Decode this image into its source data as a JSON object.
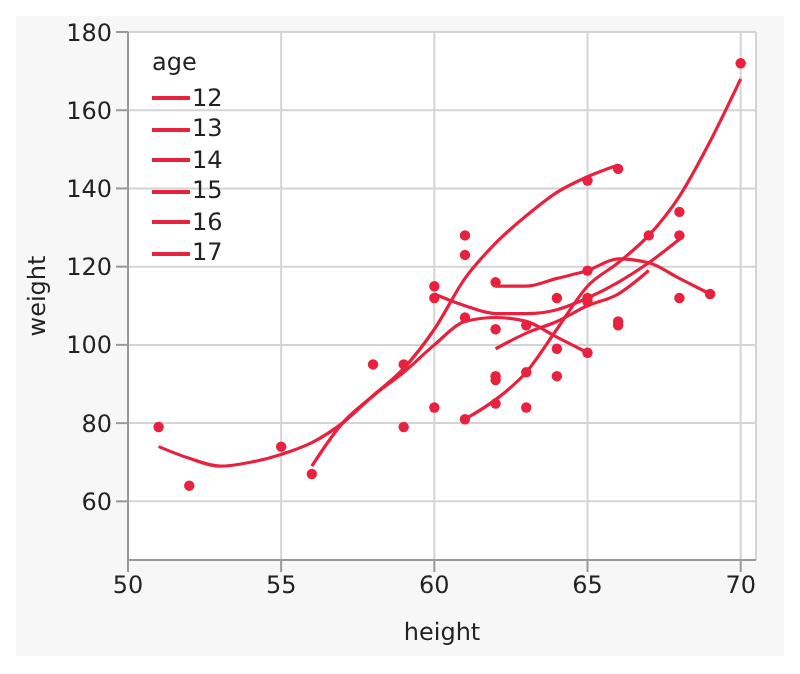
{
  "chart_data": {
    "type": "scatter",
    "xlabel": "height",
    "ylabel": "weight",
    "legend_title": "age",
    "xlim": [
      50,
      70.5
    ],
    "ylim": [
      45,
      180
    ],
    "xticks": [
      50,
      55,
      60,
      65,
      70
    ],
    "yticks": [
      60,
      80,
      100,
      120,
      140,
      160,
      180
    ],
    "grid": true,
    "legend": "top left",
    "series": [
      {
        "color": "#e8213f",
        "marker": "circle",
        "x": [
          51,
          52,
          55,
          56,
          58,
          59,
          59,
          60,
          60,
          60,
          61,
          61,
          61,
          61,
          62,
          62,
          62,
          62,
          62,
          63,
          63,
          63,
          64,
          64,
          64,
          65,
          65,
          65,
          65,
          65,
          66,
          66,
          66,
          67,
          68,
          68,
          68,
          69,
          70
        ],
        "values": [
          79,
          64,
          74,
          67,
          95,
          79,
          95,
          84,
          112,
          115,
          81,
          107,
          123,
          128,
          85,
          91,
          92,
          104,
          116,
          84,
          93,
          105,
          92,
          99,
          112,
          98,
          111,
          112,
          119,
          142,
          105,
          106,
          145,
          128,
          112,
          128,
          134,
          113,
          172
        ]
      },
      {
        "type": "line",
        "name": "12",
        "color": "#e8213f",
        "marker": "none",
        "x": [
          51,
          52,
          53,
          54,
          55,
          56,
          57,
          58,
          59,
          60,
          61,
          62,
          63,
          64,
          65
        ],
        "values": [
          74,
          71,
          69,
          70,
          72,
          75,
          80,
          87,
          93,
          100,
          106,
          107,
          106,
          102,
          98
        ]
      },
      {
        "type": "line",
        "name": "13",
        "color": "#e8213f",
        "marker": "none",
        "x": [
          56,
          57,
          58,
          59,
          60,
          61,
          62,
          63,
          64,
          65,
          66
        ],
        "values": [
          69,
          80,
          87,
          94,
          104,
          117,
          126,
          133,
          139,
          143,
          146
        ]
      },
      {
        "type": "line",
        "name": "14",
        "color": "#e8213f",
        "marker": "none",
        "x": [
          60,
          61,
          62,
          63,
          64,
          65,
          66,
          67,
          68
        ],
        "values": [
          113,
          110,
          108,
          108,
          109,
          112,
          116,
          121,
          127
        ]
      },
      {
        "type": "line",
        "name": "15",
        "color": "#e8213f",
        "marker": "none",
        "x": [
          62,
          63,
          64,
          65,
          66,
          67
        ],
        "values": [
          99,
          103,
          106,
          110,
          113,
          119
        ]
      },
      {
        "type": "line",
        "name": "16",
        "color": "#e8213f",
        "marker": "none",
        "x": [
          62,
          63,
          64,
          65,
          66,
          67,
          68,
          69
        ],
        "values": [
          115,
          115,
          117,
          119,
          122,
          121,
          117,
          113
        ]
      },
      {
        "type": "line",
        "name": "17",
        "color": "#e8213f",
        "marker": "none",
        "x": [
          61,
          62,
          63,
          64,
          65,
          66,
          67,
          68,
          69,
          70
        ],
        "values": [
          81,
          86,
          93,
          104,
          115,
          121,
          128,
          138,
          152,
          168
        ]
      }
    ]
  }
}
